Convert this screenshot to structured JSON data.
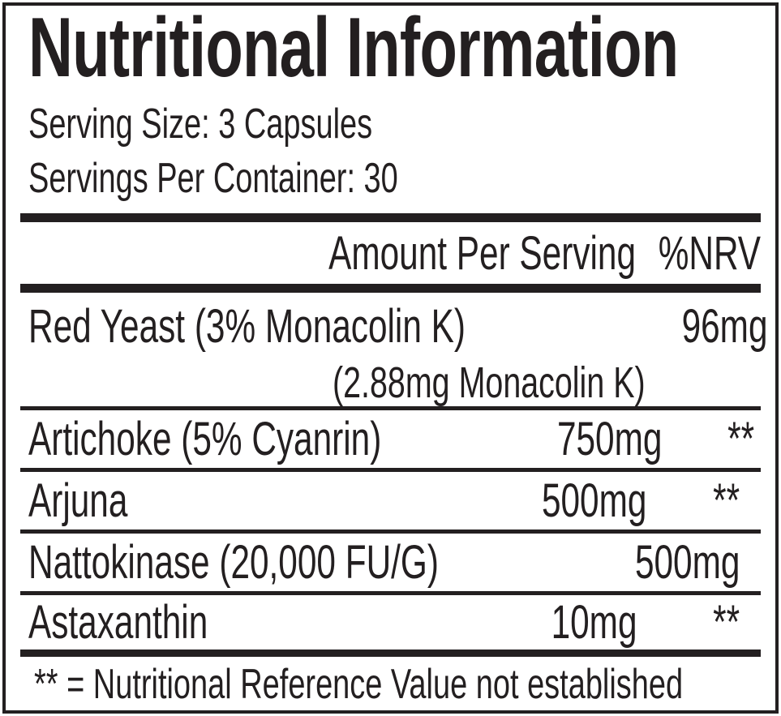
{
  "label": {
    "title": "Nutritional Information",
    "serving_size": "Serving Size: 3 Capsules",
    "servings_per_container": "Servings Per Container: 30",
    "columns": {
      "amount_header": "Amount Per Serving",
      "nrv_header": "%NRV"
    },
    "rows": [
      {
        "name": "Red Yeast (3% Monacolin K)",
        "subnote": "(2.88mg Monacolin K)",
        "amount": "96mg",
        "nrv": "**"
      },
      {
        "name": "Artichoke (5% Cyanrin)",
        "amount": "750mg",
        "nrv": "**"
      },
      {
        "name": "Arjuna",
        "amount": "500mg",
        "nrv": "**"
      },
      {
        "name": "Nattokinase (20,000 FU/G)",
        "amount": "500mg",
        "nrv": "**"
      },
      {
        "name": "Astaxanthin",
        "amount": "10mg",
        "nrv": "**"
      }
    ],
    "footnote": "** = Nutritional Reference Value not established",
    "colors": {
      "ink": "#231f20",
      "background": "#ffffff"
    }
  }
}
